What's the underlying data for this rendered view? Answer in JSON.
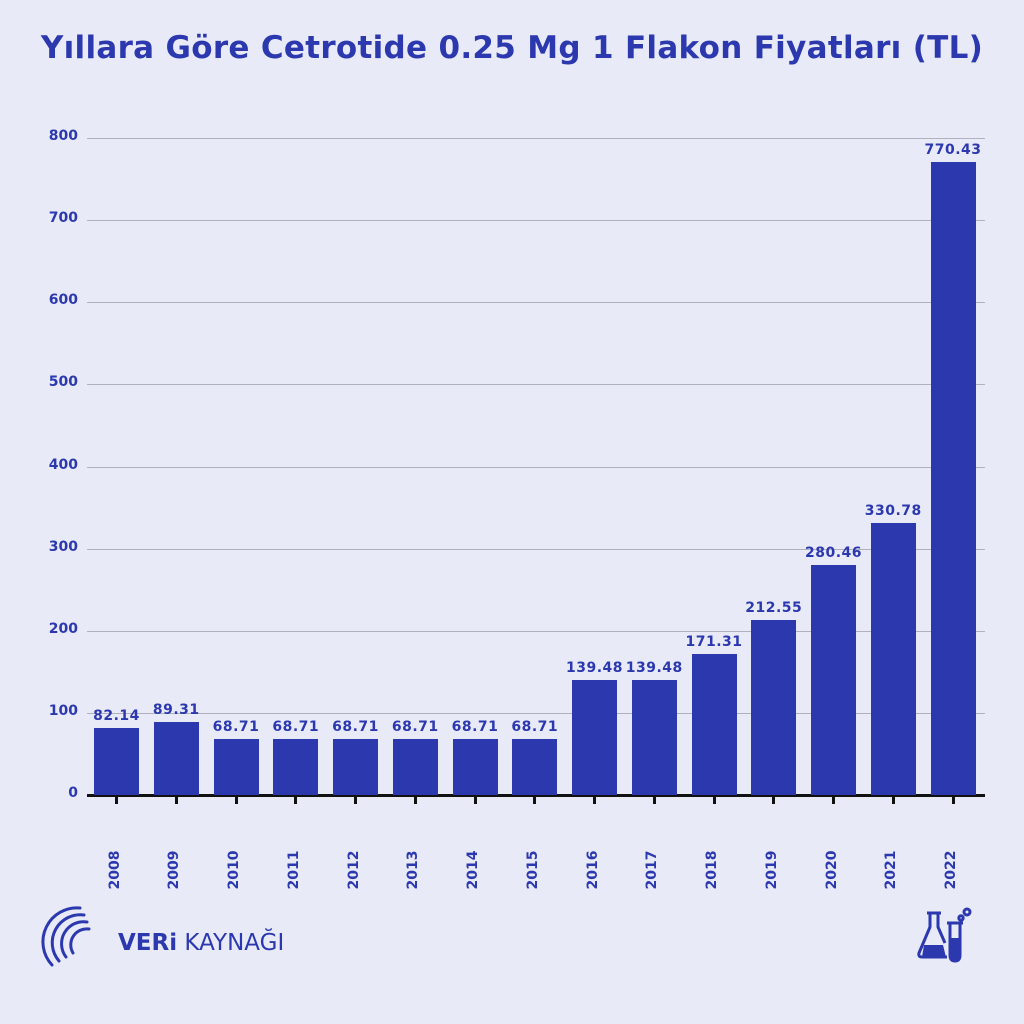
{
  "title": "Yıllara Göre Cetrotide 0.25 Mg 1 Flakon Fiyatları (TL)",
  "branding": {
    "logo_bold": "VERi",
    "logo_light": " KAYNAĞI",
    "colors": {
      "primary": "#2c38ae",
      "background": "#e9eaf8",
      "axis": "#111111",
      "grid": "#b1b1bd"
    }
  },
  "chart_data": {
    "type": "bar",
    "title": "Yıllara Göre Cetrotide 0.25 Mg 1 Flakon Fiyatları (TL)",
    "xlabel": "",
    "ylabel": "",
    "categories": [
      "2008",
      "2009",
      "2010",
      "2011",
      "2012",
      "2013",
      "2014",
      "2015",
      "2016",
      "2017",
      "2018",
      "2019",
      "2020",
      "2021",
      "2022"
    ],
    "values": [
      82.14,
      89.31,
      68.71,
      68.71,
      68.71,
      68.71,
      68.71,
      68.71,
      139.48,
      139.48,
      171.31,
      212.55,
      280.46,
      330.78,
      770.43
    ],
    "value_labels": [
      "82.14",
      "89.31",
      "68.71",
      "68.71",
      "68.71",
      "68.71",
      "68.71",
      "68.71",
      "139.48",
      "139.48",
      "171.31",
      "212.55",
      "280.46",
      "330.78",
      "770.43"
    ],
    "yticks": [
      "0",
      "100",
      "200",
      "300",
      "400",
      "500",
      "600",
      "700",
      "800"
    ],
    "ylim": [
      0,
      800
    ],
    "grid": true,
    "legend": null,
    "x_label_rotation": -90
  }
}
